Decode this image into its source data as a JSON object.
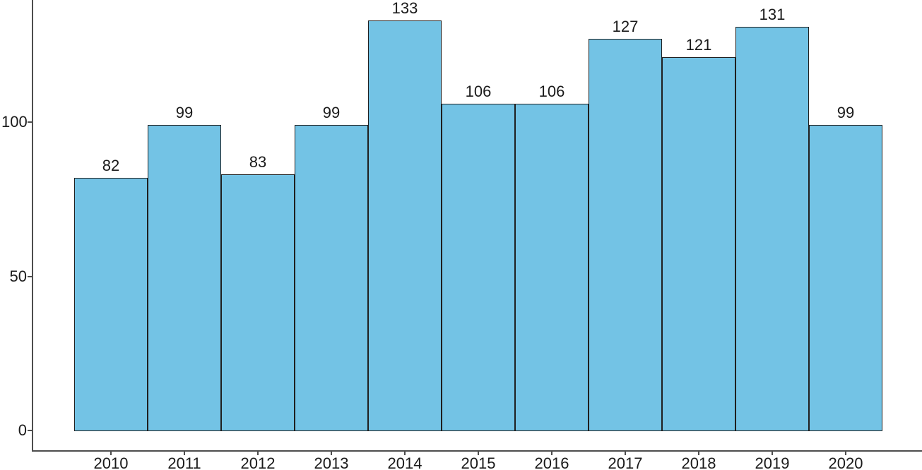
{
  "chart_data": {
    "type": "bar",
    "title": "",
    "xlabel": "",
    "ylabel": "",
    "categories": [
      "2010",
      "2011",
      "2012",
      "2013",
      "2014",
      "2015",
      "2016",
      "2017",
      "2018",
      "2019",
      "2020"
    ],
    "values": [
      82,
      99,
      83,
      99,
      133,
      106,
      106,
      127,
      121,
      131,
      99
    ],
    "bar_value_labels": [
      "82",
      "99",
      "83",
      "99",
      "133",
      "106",
      "106",
      "127",
      "121",
      "131",
      "99"
    ],
    "yticks": [
      0,
      50,
      100
    ],
    "ytick_labels": [
      "0",
      "50",
      "100"
    ],
    "ylim": [
      0,
      145
    ],
    "grid": "off",
    "legend": "none",
    "bars_adjacent": true,
    "colors": {
      "bar_fill": "#73C3E5",
      "bar_border": "#1f1f1f",
      "axis_line": "#4d4d4d",
      "text": "#1a1a1a",
      "background": "#ffffff"
    }
  }
}
